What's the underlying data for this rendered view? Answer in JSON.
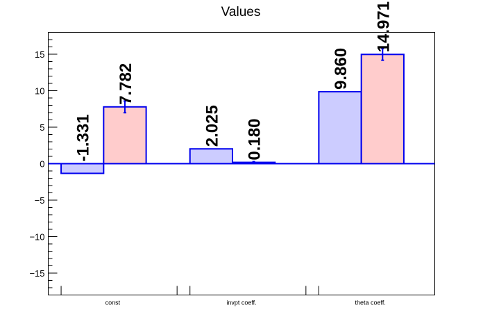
{
  "chart_data": {
    "type": "bar",
    "title": "Values",
    "categories": [
      "const",
      "invpt coeff.",
      "theta coeff."
    ],
    "series": [
      {
        "values": [
          -1.331,
          2.025,
          9.86
        ],
        "labels": [
          "-1.331",
          "2.025",
          "9.860"
        ],
        "errors": [
          0,
          0,
          0
        ],
        "color": "#ccccff"
      },
      {
        "values": [
          7.782,
          0.18,
          14.971
        ],
        "labels": [
          "7.782",
          "0.180",
          "14.971"
        ],
        "errors": [
          0.8,
          0.1,
          0.8
        ],
        "color": "#ffcccc"
      }
    ],
    "ylim": [
      -18,
      18
    ],
    "yticks": [
      {
        "value": 15,
        "label": "15"
      },
      {
        "value": 10,
        "label": "10"
      },
      {
        "value": 5,
        "label": "5"
      },
      {
        "value": 0,
        "label": "0"
      },
      {
        "value": -5,
        "label": "−5"
      },
      {
        "value": -10,
        "label": "−10"
      },
      {
        "value": -15,
        "label": "−15"
      }
    ],
    "xlabel": "",
    "ylabel": "",
    "grid": false,
    "outline_color": "#0000ee"
  }
}
